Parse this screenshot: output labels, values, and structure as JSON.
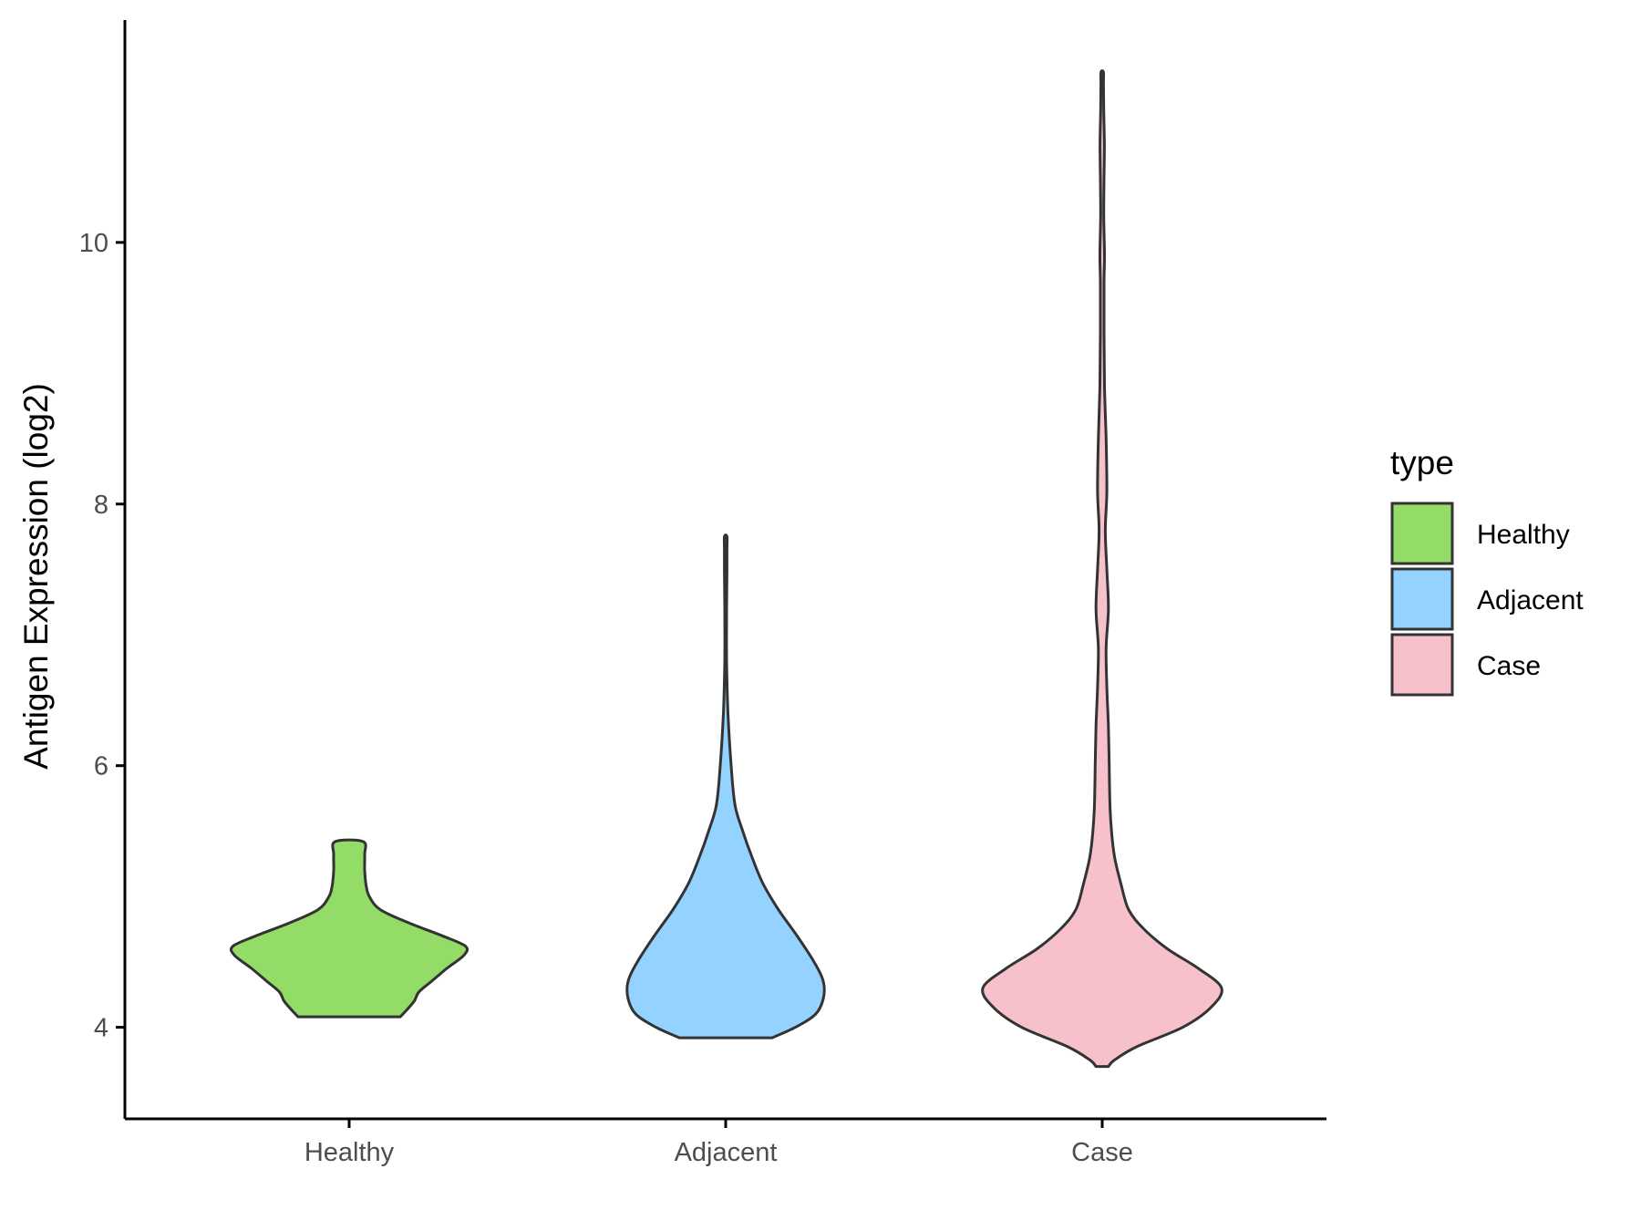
{
  "chart_data": {
    "type": "violin",
    "title": "",
    "xlabel": "",
    "ylabel": "Antigen Expression (log2)",
    "ylim": [
      3.3,
      11.7
    ],
    "yticks": [
      4,
      6,
      8,
      10
    ],
    "ytick_labels": [
      "4",
      "6",
      "8",
      "10"
    ],
    "categories": [
      "Healthy",
      "Adjacent",
      "Case"
    ],
    "grid": false,
    "legend": {
      "title": "type",
      "placement": "right",
      "entries": [
        "Healthy",
        "Adjacent",
        "Case"
      ]
    },
    "series": [
      {
        "name": "Healthy",
        "color": "#92DC67",
        "min": 4.08,
        "max": 5.42,
        "density_profile": [
          [
            4.08,
            0.33
          ],
          [
            4.13,
            0.37
          ],
          [
            4.2,
            0.42
          ],
          [
            4.27,
            0.45
          ],
          [
            4.35,
            0.53
          ],
          [
            4.45,
            0.63
          ],
          [
            4.55,
            0.74
          ],
          [
            4.62,
            0.75
          ],
          [
            4.7,
            0.6
          ],
          [
            4.8,
            0.38
          ],
          [
            4.9,
            0.2
          ],
          [
            5.0,
            0.13
          ],
          [
            5.08,
            0.11
          ],
          [
            5.2,
            0.1
          ],
          [
            5.32,
            0.1
          ],
          [
            5.42,
            0.09
          ]
        ]
      },
      {
        "name": "Adjacent",
        "color": "#94D3FF",
        "min": 3.92,
        "max": 7.75,
        "density_profile": [
          [
            3.92,
            0.3
          ],
          [
            4.0,
            0.45
          ],
          [
            4.1,
            0.58
          ],
          [
            4.22,
            0.63
          ],
          [
            4.35,
            0.63
          ],
          [
            4.5,
            0.57
          ],
          [
            4.7,
            0.46
          ],
          [
            4.9,
            0.34
          ],
          [
            5.1,
            0.24
          ],
          [
            5.3,
            0.17
          ],
          [
            5.5,
            0.11
          ],
          [
            5.7,
            0.06
          ],
          [
            6.0,
            0.035
          ],
          [
            6.4,
            0.015
          ],
          [
            6.8,
            0.006
          ],
          [
            7.2,
            0.006
          ],
          [
            7.5,
            0.008
          ],
          [
            7.65,
            0.008
          ],
          [
            7.75,
            0.008
          ]
        ]
      },
      {
        "name": "Case",
        "color": "#F7C1CC",
        "min": 3.7,
        "max": 11.3,
        "density_profile": [
          [
            3.7,
            0.04
          ],
          [
            3.75,
            0.08
          ],
          [
            3.85,
            0.22
          ],
          [
            4.0,
            0.52
          ],
          [
            4.15,
            0.7
          ],
          [
            4.3,
            0.77
          ],
          [
            4.45,
            0.62
          ],
          [
            4.6,
            0.42
          ],
          [
            4.75,
            0.27
          ],
          [
            4.9,
            0.17
          ],
          [
            5.1,
            0.12
          ],
          [
            5.3,
            0.08
          ],
          [
            5.5,
            0.06
          ],
          [
            5.7,
            0.05
          ],
          [
            6.0,
            0.045
          ],
          [
            6.3,
            0.04
          ],
          [
            6.6,
            0.03
          ],
          [
            6.9,
            0.025
          ],
          [
            7.2,
            0.04
          ],
          [
            7.5,
            0.03
          ],
          [
            7.8,
            0.02
          ],
          [
            8.1,
            0.03
          ],
          [
            8.5,
            0.025
          ],
          [
            8.9,
            0.015
          ],
          [
            9.3,
            0.012
          ],
          [
            9.7,
            0.012
          ],
          [
            9.9,
            0.015
          ],
          [
            10.2,
            0.01
          ],
          [
            10.5,
            0.012
          ],
          [
            10.75,
            0.014
          ],
          [
            11.0,
            0.01
          ],
          [
            11.2,
            0.008
          ],
          [
            11.3,
            0.008
          ]
        ]
      }
    ]
  }
}
